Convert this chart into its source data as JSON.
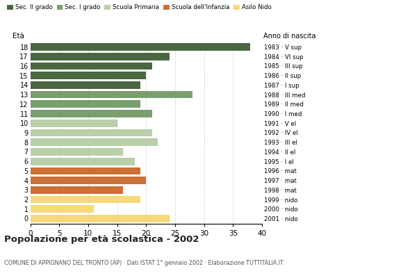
{
  "ages": [
    18,
    17,
    16,
    15,
    14,
    13,
    12,
    11,
    10,
    9,
    8,
    7,
    6,
    5,
    4,
    3,
    2,
    1,
    0
  ],
  "values": [
    38,
    24,
    21,
    20,
    19,
    28,
    19,
    21,
    15,
    21,
    22,
    16,
    18,
    19,
    20,
    16,
    19,
    11,
    24
  ],
  "right_labels": [
    "1983 · V sup",
    "1984 · VI sup",
    "1985 · III sup",
    "1986 · II sup",
    "1987 · I sup",
    "1988 · III med",
    "1989 · II med",
    "1990 · I med",
    "1991 · V el",
    "1992 · IV el",
    "1993 · III el",
    "1994 · II el",
    "1995 · I el",
    "1996 · mat",
    "1997 · mat",
    "1998 · mat",
    "1999 · nido",
    "2000 · nido",
    "2001 · nido"
  ],
  "bar_colors": [
    "#4a6741",
    "#4a6741",
    "#4a6741",
    "#4a6741",
    "#4a6741",
    "#7a9e6e",
    "#7a9e6e",
    "#7a9e6e",
    "#b8cfaa",
    "#b8cfaa",
    "#b8cfaa",
    "#b8cfaa",
    "#b8cfaa",
    "#cc7033",
    "#cc7033",
    "#cc7033",
    "#f5d97a",
    "#f5d97a",
    "#f5d97a"
  ],
  "legend_labels": [
    "Sec. II grado",
    "Sec. I grado",
    "Scuola Primaria",
    "Scuola dell'Infanzia",
    "Asilo Nido"
  ],
  "legend_colors": [
    "#4a6741",
    "#7a9e6e",
    "#b8cfaa",
    "#cc7033",
    "#f5d97a"
  ],
  "title": "Popolazione per età scolastica - 2002",
  "subtitle": "COMUNE DI APPIGNANO DEL TRONTO (AP) · Dati ISTAT 1° gennaio 2002 · Elaborazione TUTTITALIA.IT",
  "xlabel_left": "Età",
  "xlabel_right": "Anno di nascita",
  "xlim": [
    0,
    40
  ],
  "xticks": [
    0,
    5,
    10,
    15,
    20,
    25,
    30,
    35,
    40
  ],
  "grid_color": "#aaaaaa",
  "bg_color": "#ffffff",
  "bar_height": 0.78
}
